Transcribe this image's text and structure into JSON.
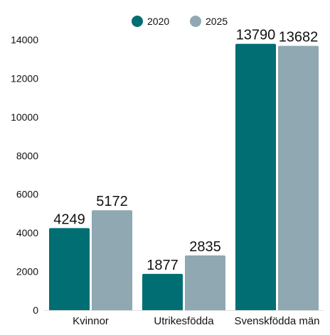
{
  "chart_data": {
    "type": "bar",
    "categories": [
      "Kvinnor",
      "Utrikesfödda",
      "Svenskfödda män"
    ],
    "series": [
      {
        "name": "2020",
        "color": "#006e73",
        "values": [
          4249,
          1877,
          13790
        ]
      },
      {
        "name": "2025",
        "color": "#8fa8b2",
        "values": [
          5172,
          2835,
          13682
        ]
      }
    ],
    "ylim": [
      0,
      14000
    ],
    "yticks": [
      0,
      2000,
      4000,
      6000,
      8000,
      10000,
      12000,
      14000
    ],
    "legend_position": "top-center",
    "grid": false,
    "data_labels": true
  }
}
